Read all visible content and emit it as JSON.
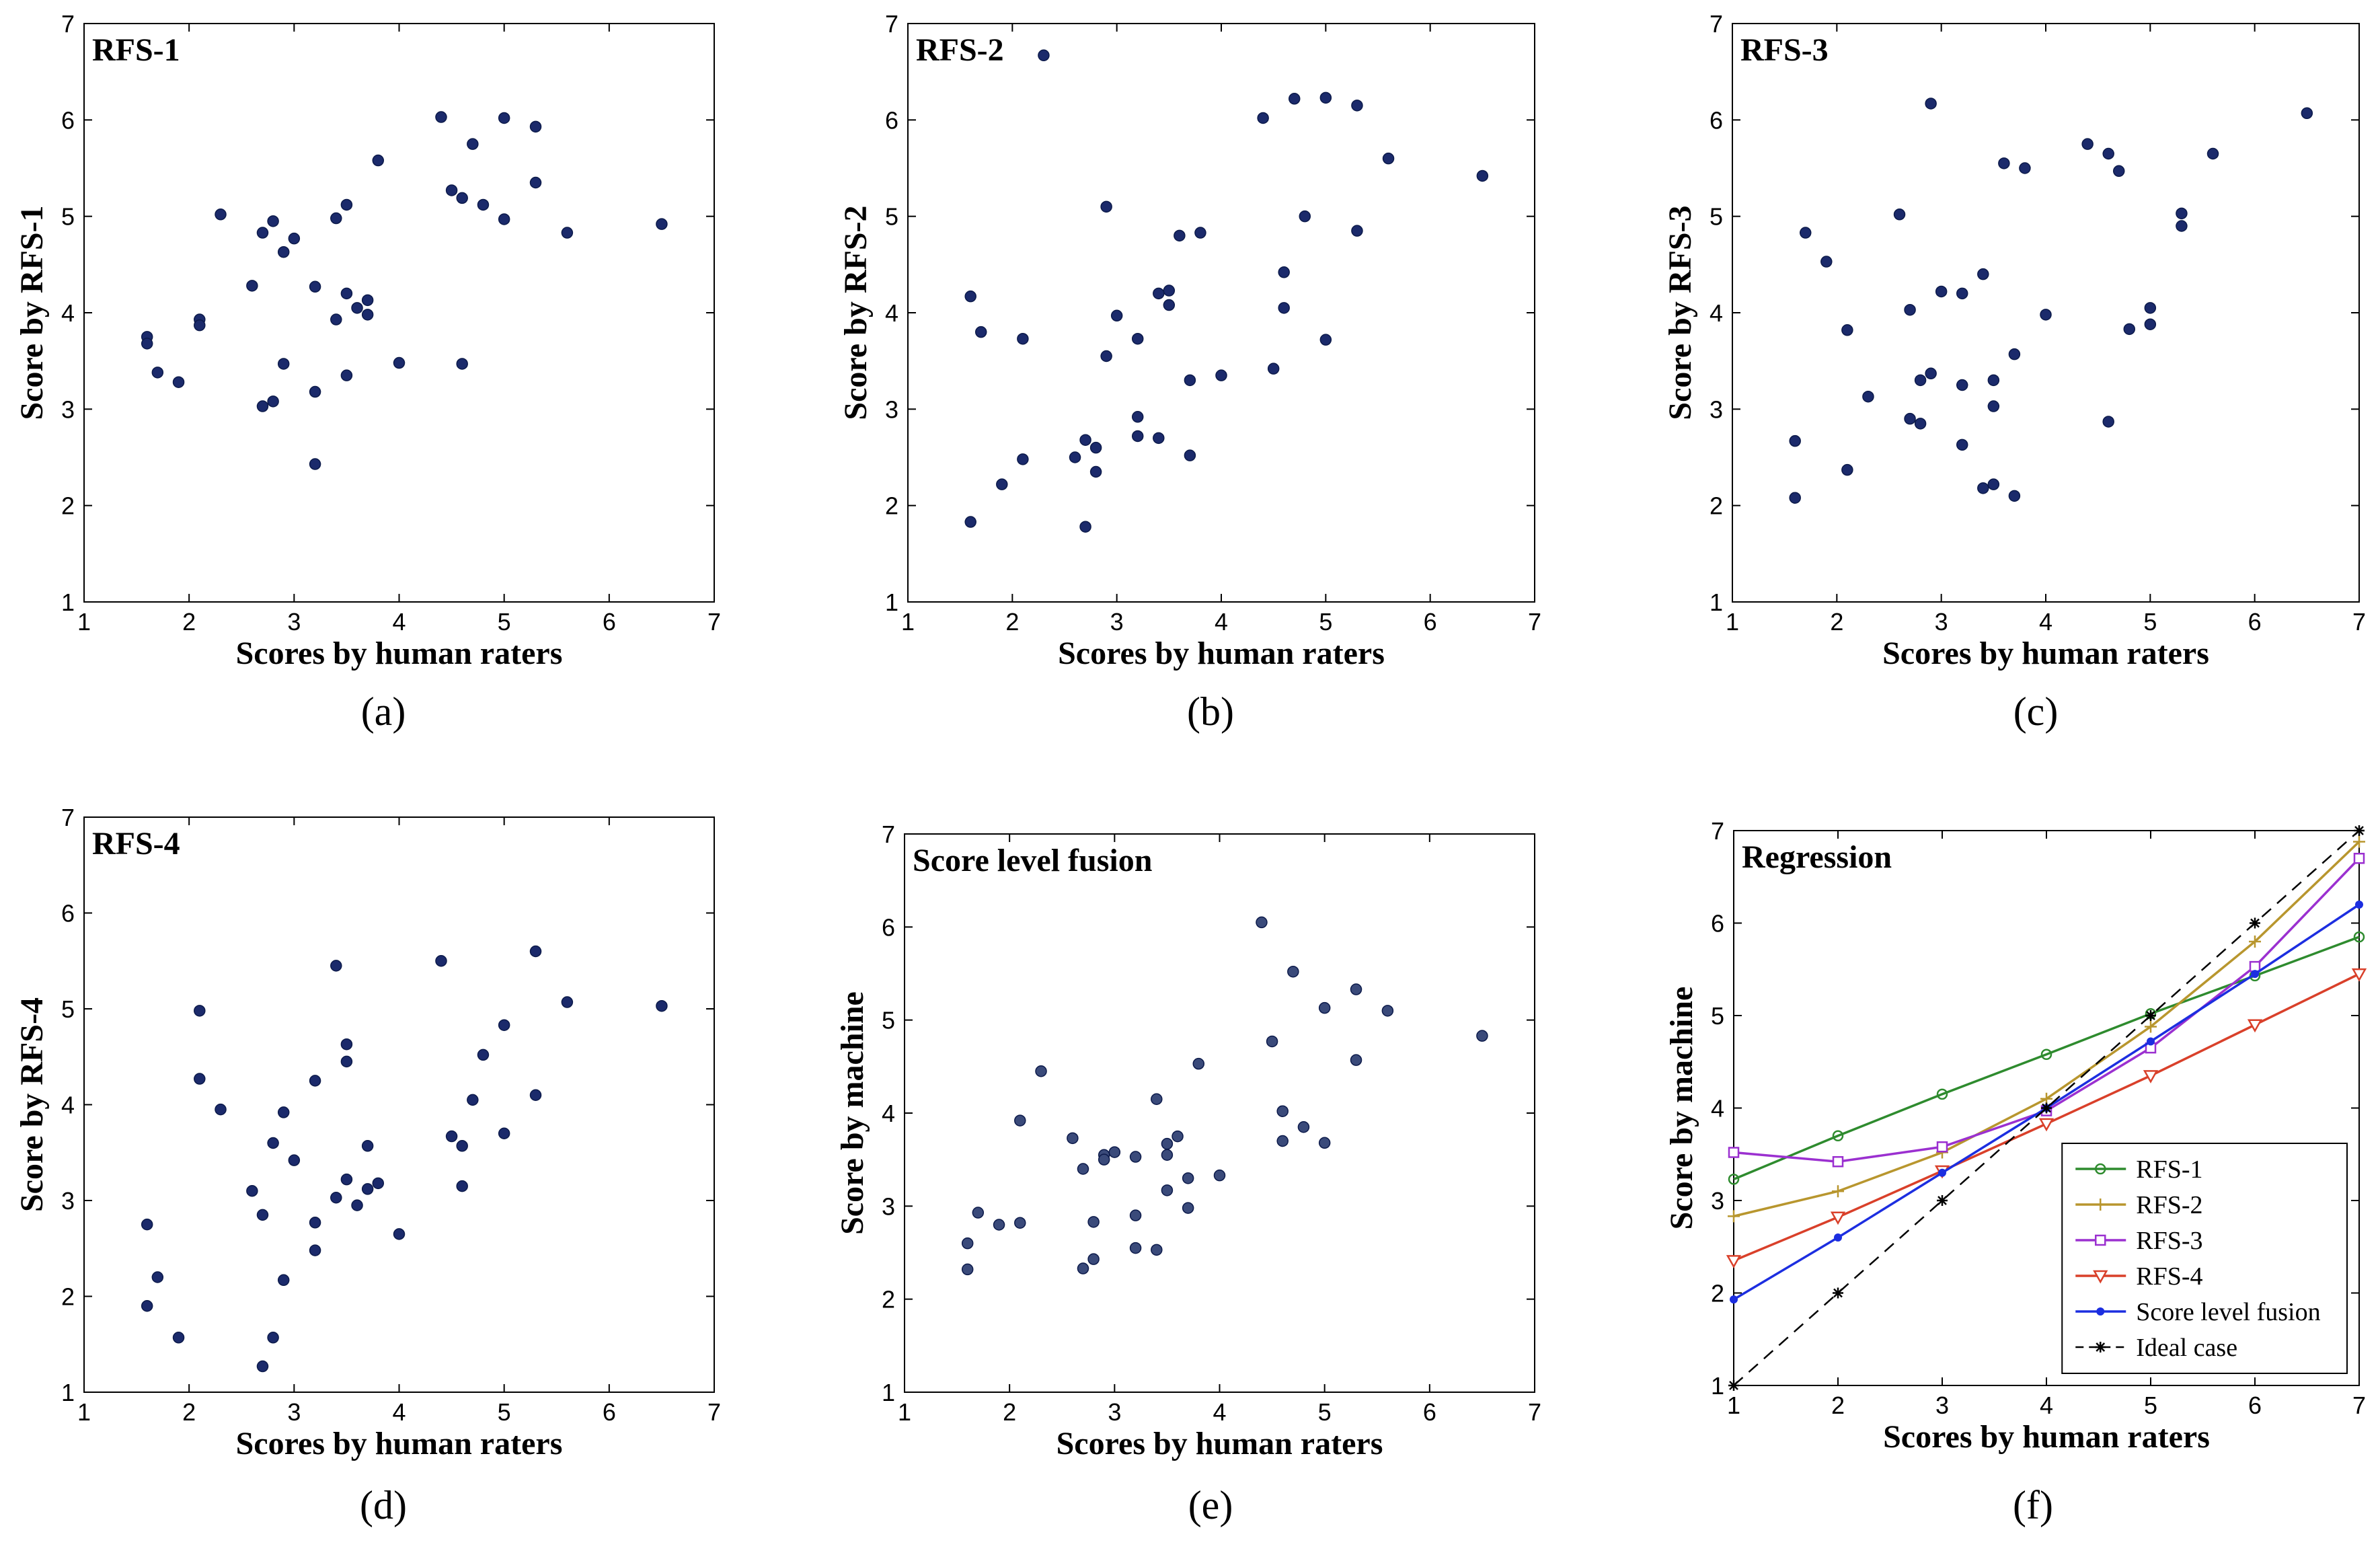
{
  "chart_data": [
    {
      "type": "scatter",
      "panel": "(a)",
      "title": "RFS-1",
      "xlabel": "Scores by human raters",
      "ylabel": "Score by RFS-1",
      "xlim": [
        1,
        7
      ],
      "ylim": [
        1,
        7
      ],
      "xticks": [
        1,
        2,
        3,
        4,
        5,
        6,
        7
      ],
      "yticks": [
        1,
        2,
        3,
        4,
        5,
        6,
        7
      ],
      "color": "#1b2a6b",
      "points": [
        [
          1.6,
          3.75
        ],
        [
          1.6,
          3.68
        ],
        [
          1.7,
          3.38
        ],
        [
          1.9,
          3.28
        ],
        [
          2.1,
          3.93
        ],
        [
          2.1,
          3.87
        ],
        [
          2.3,
          5.02
        ],
        [
          2.6,
          4.28
        ],
        [
          2.7,
          4.83
        ],
        [
          2.7,
          3.03
        ],
        [
          2.8,
          4.95
        ],
        [
          2.8,
          3.08
        ],
        [
          2.9,
          4.63
        ],
        [
          2.9,
          3.47
        ],
        [
          3.0,
          4.77
        ],
        [
          3.2,
          4.27
        ],
        [
          3.2,
          3.18
        ],
        [
          3.2,
          2.43
        ],
        [
          3.4,
          4.98
        ],
        [
          3.4,
          3.93
        ],
        [
          3.5,
          5.12
        ],
        [
          3.5,
          4.2
        ],
        [
          3.5,
          3.35
        ],
        [
          3.6,
          4.05
        ],
        [
          3.7,
          4.13
        ],
        [
          3.7,
          3.98
        ],
        [
          3.8,
          5.58
        ],
        [
          4.0,
          3.48
        ],
        [
          4.4,
          6.03
        ],
        [
          4.5,
          5.27
        ],
        [
          4.6,
          5.19
        ],
        [
          4.6,
          3.47
        ],
        [
          4.7,
          5.75
        ],
        [
          4.8,
          5.12
        ],
        [
          5.0,
          6.02
        ],
        [
          5.0,
          4.97
        ],
        [
          5.3,
          5.93
        ],
        [
          5.3,
          5.35
        ],
        [
          5.6,
          4.83
        ],
        [
          6.5,
          4.92
        ]
      ]
    },
    {
      "type": "scatter",
      "panel": "(b)",
      "title": "RFS-2",
      "xlabel": "Scores by human raters",
      "ylabel": "Score by RFS-2",
      "xlim": [
        1,
        7
      ],
      "ylim": [
        1,
        7
      ],
      "xticks": [
        1,
        2,
        3,
        4,
        5,
        6,
        7
      ],
      "yticks": [
        1,
        2,
        3,
        4,
        5,
        6,
        7
      ],
      "color": "#1b2a6b",
      "points": [
        [
          1.6,
          4.17
        ],
        [
          1.6,
          1.83
        ],
        [
          1.7,
          3.8
        ],
        [
          1.9,
          2.22
        ],
        [
          2.1,
          3.73
        ],
        [
          2.1,
          2.48
        ],
        [
          2.3,
          6.67
        ],
        [
          2.6,
          2.5
        ],
        [
          2.7,
          2.68
        ],
        [
          2.7,
          1.78
        ],
        [
          2.8,
          2.6
        ],
        [
          2.8,
          2.35
        ],
        [
          2.9,
          5.1
        ],
        [
          2.9,
          3.55
        ],
        [
          3.0,
          3.97
        ],
        [
          3.2,
          3.73
        ],
        [
          3.2,
          2.92
        ],
        [
          3.2,
          2.72
        ],
        [
          3.4,
          4.2
        ],
        [
          3.4,
          2.7
        ],
        [
          3.5,
          4.23
        ],
        [
          3.5,
          4.08
        ],
        [
          3.6,
          4.8
        ],
        [
          3.7,
          3.3
        ],
        [
          3.7,
          2.52
        ],
        [
          3.8,
          4.83
        ],
        [
          4.0,
          3.35
        ],
        [
          4.4,
          6.02
        ],
        [
          4.5,
          3.42
        ],
        [
          4.6,
          4.42
        ],
        [
          4.6,
          4.05
        ],
        [
          4.7,
          6.22
        ],
        [
          4.8,
          5.0
        ],
        [
          5.0,
          6.23
        ],
        [
          5.0,
          3.72
        ],
        [
          5.3,
          6.15
        ],
        [
          5.3,
          4.85
        ],
        [
          5.6,
          5.6
        ],
        [
          6.5,
          5.42
        ]
      ]
    },
    {
      "type": "scatter",
      "panel": "(c)",
      "title": "RFS-3",
      "xlabel": "Scores by human raters",
      "ylabel": "Score by RFS-3",
      "xlim": [
        1,
        7
      ],
      "ylim": [
        1,
        7
      ],
      "xticks": [
        1,
        2,
        3,
        4,
        5,
        6,
        7
      ],
      "yticks": [
        1,
        2,
        3,
        4,
        5,
        6,
        7
      ],
      "color": "#1b2a6b",
      "points": [
        [
          1.6,
          2.67
        ],
        [
          1.6,
          2.08
        ],
        [
          1.7,
          4.83
        ],
        [
          1.9,
          4.53
        ],
        [
          2.1,
          3.82
        ],
        [
          2.1,
          2.37
        ],
        [
          2.3,
          3.13
        ],
        [
          2.6,
          5.02
        ],
        [
          2.7,
          4.03
        ],
        [
          2.7,
          2.9
        ],
        [
          2.8,
          3.3
        ],
        [
          2.8,
          2.85
        ],
        [
          2.9,
          6.17
        ],
        [
          2.9,
          3.37
        ],
        [
          3.0,
          4.22
        ],
        [
          3.2,
          4.2
        ],
        [
          3.2,
          3.25
        ],
        [
          3.2,
          2.63
        ],
        [
          3.4,
          4.4
        ],
        [
          3.4,
          2.18
        ],
        [
          3.5,
          3.3
        ],
        [
          3.5,
          3.03
        ],
        [
          3.5,
          2.22
        ],
        [
          3.6,
          5.55
        ],
        [
          3.7,
          3.57
        ],
        [
          3.7,
          2.1
        ],
        [
          3.8,
          5.5
        ],
        [
          4.0,
          3.98
        ],
        [
          4.4,
          5.75
        ],
        [
          4.6,
          5.65
        ],
        [
          4.6,
          2.87
        ],
        [
          4.7,
          5.47
        ],
        [
          4.8,
          3.83
        ],
        [
          5.0,
          4.05
        ],
        [
          5.0,
          3.88
        ],
        [
          5.3,
          5.03
        ],
        [
          5.3,
          4.9
        ],
        [
          5.6,
          5.65
        ],
        [
          6.5,
          6.07
        ]
      ]
    },
    {
      "type": "scatter",
      "panel": "(d)",
      "title": "RFS-4",
      "xlabel": "Scores by human raters",
      "ylabel": "Score by RFS-4",
      "xlim": [
        1,
        7
      ],
      "ylim": [
        1,
        7
      ],
      "xticks": [
        1,
        2,
        3,
        4,
        5,
        6,
        7
      ],
      "yticks": [
        1,
        2,
        3,
        4,
        5,
        6,
        7
      ],
      "color": "#1b2a6b",
      "points": [
        [
          1.6,
          2.75
        ],
        [
          1.6,
          1.9
        ],
        [
          1.7,
          2.2
        ],
        [
          1.9,
          1.57
        ],
        [
          2.1,
          4.98
        ],
        [
          2.1,
          4.27
        ],
        [
          2.3,
          3.95
        ],
        [
          2.6,
          3.1
        ],
        [
          2.7,
          2.85
        ],
        [
          2.7,
          1.27
        ],
        [
          2.8,
          3.6
        ],
        [
          2.8,
          1.57
        ],
        [
          2.9,
          3.92
        ],
        [
          2.9,
          2.17
        ],
        [
          3.0,
          3.42
        ],
        [
          3.2,
          4.25
        ],
        [
          3.2,
          2.77
        ],
        [
          3.2,
          2.48
        ],
        [
          3.4,
          5.45
        ],
        [
          3.4,
          3.03
        ],
        [
          3.5,
          4.63
        ],
        [
          3.5,
          4.45
        ],
        [
          3.5,
          3.22
        ],
        [
          3.6,
          2.95
        ],
        [
          3.7,
          3.57
        ],
        [
          3.7,
          3.12
        ],
        [
          3.8,
          3.18
        ],
        [
          4.0,
          2.65
        ],
        [
          4.4,
          5.5
        ],
        [
          4.5,
          3.67
        ],
        [
          4.6,
          3.57
        ],
        [
          4.6,
          3.15
        ],
        [
          4.7,
          4.05
        ],
        [
          4.8,
          4.52
        ],
        [
          5.0,
          4.83
        ],
        [
          5.0,
          3.7
        ],
        [
          5.3,
          5.6
        ],
        [
          5.3,
          4.1
        ],
        [
          5.6,
          5.07
        ],
        [
          6.5,
          5.03
        ]
      ]
    },
    {
      "type": "scatter",
      "panel": "(e)",
      "title": "Score level fusion",
      "xlabel": "Scores by human raters",
      "ylabel": "Score by machine",
      "xlim": [
        1,
        7
      ],
      "ylim": [
        1,
        7
      ],
      "xticks": [
        1,
        2,
        3,
        4,
        5,
        6,
        7
      ],
      "yticks": [
        1,
        2,
        3,
        4,
        5,
        6,
        7
      ],
      "color": "#3a4a7a",
      "points": [
        [
          1.6,
          2.6
        ],
        [
          1.6,
          2.32
        ],
        [
          1.7,
          2.93
        ],
        [
          1.9,
          2.8
        ],
        [
          2.1,
          3.92
        ],
        [
          2.1,
          2.82
        ],
        [
          2.3,
          4.45
        ],
        [
          2.6,
          3.73
        ],
        [
          2.7,
          3.4
        ],
        [
          2.7,
          2.33
        ],
        [
          2.8,
          2.83
        ],
        [
          2.8,
          2.43
        ],
        [
          2.9,
          3.55
        ],
        [
          2.9,
          3.5
        ],
        [
          3.0,
          3.58
        ],
        [
          3.2,
          3.53
        ],
        [
          3.2,
          2.9
        ],
        [
          3.2,
          2.55
        ],
        [
          3.4,
          4.15
        ],
        [
          3.4,
          2.53
        ],
        [
          3.5,
          3.67
        ],
        [
          3.5,
          3.55
        ],
        [
          3.5,
          3.17
        ],
        [
          3.6,
          3.75
        ],
        [
          3.7,
          3.3
        ],
        [
          3.7,
          2.98
        ],
        [
          3.8,
          4.53
        ],
        [
          4.0,
          3.33
        ],
        [
          4.4,
          6.05
        ],
        [
          4.5,
          4.77
        ],
        [
          4.6,
          4.02
        ],
        [
          4.6,
          3.7
        ],
        [
          4.7,
          5.52
        ],
        [
          4.8,
          3.85
        ],
        [
          5.0,
          5.13
        ],
        [
          5.0,
          3.68
        ],
        [
          5.3,
          5.33
        ],
        [
          5.3,
          4.57
        ],
        [
          5.6,
          5.1
        ],
        [
          6.5,
          4.83
        ]
      ]
    },
    {
      "type": "line",
      "panel": "(f)",
      "title": "Regression",
      "xlabel": "Scores by human raters",
      "ylabel": "Score by machine",
      "xlim": [
        1,
        7
      ],
      "ylim": [
        1,
        7
      ],
      "xticks": [
        1,
        2,
        3,
        4,
        5,
        6,
        7
      ],
      "yticks": [
        1,
        2,
        3,
        4,
        5,
        6,
        7
      ],
      "x": [
        1,
        2,
        3,
        4,
        5,
        6,
        7
      ],
      "legend_position": "bottom-right",
      "series": [
        {
          "name": "RFS-1",
          "color": "#2e8b2e",
          "marker": "circle",
          "dash": "",
          "values": [
            3.23,
            3.7,
            4.15,
            4.58,
            5.02,
            5.43,
            5.85
          ]
        },
        {
          "name": "RFS-2",
          "color": "#b8962e",
          "marker": "plus",
          "dash": "",
          "values": [
            2.83,
            3.1,
            3.52,
            4.1,
            4.88,
            5.8,
            6.88
          ]
        },
        {
          "name": "RFS-3",
          "color": "#9b30d0",
          "marker": "square",
          "dash": "",
          "values": [
            3.52,
            3.42,
            3.58,
            3.97,
            4.65,
            5.53,
            6.7
          ]
        },
        {
          "name": "RFS-4",
          "color": "#d9402a",
          "marker": "triangle",
          "dash": "",
          "values": [
            2.35,
            2.82,
            3.32,
            3.83,
            4.35,
            4.9,
            5.45
          ]
        },
        {
          "name": "Score level fusion",
          "color": "#1c2ee0",
          "marker": "dot",
          "dash": "",
          "values": [
            1.93,
            2.6,
            3.3,
            4.0,
            4.72,
            5.45,
            6.2
          ]
        },
        {
          "name": "Ideal case",
          "color": "#000000",
          "marker": "star",
          "dash": "18,12",
          "values": [
            1,
            2,
            3,
            4,
            5,
            6,
            7
          ]
        }
      ]
    }
  ]
}
